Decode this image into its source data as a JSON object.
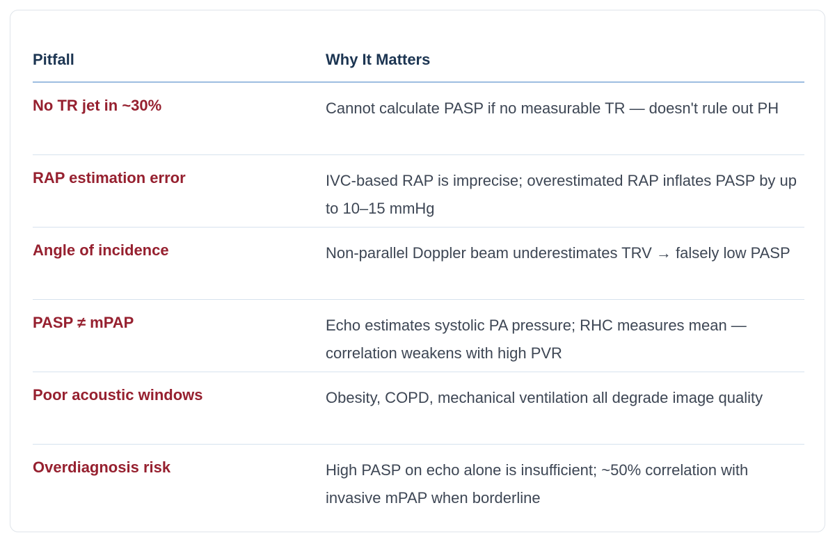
{
  "table": {
    "headers": [
      "Pitfall",
      "Why It Matters"
    ],
    "rows": [
      {
        "pitfall": "No TR jet in ~30%",
        "why": "Cannot calculate PASP if no measurable TR — doesn't rule out PH"
      },
      {
        "pitfall": "RAP estimation error",
        "why": "IVC-based RAP is imprecise; overestimated RAP inflates PASP by up to 10–15 mmHg"
      },
      {
        "pitfall": "Angle of incidence",
        "why": "Non-parallel Doppler beam underestimates TRV → falsely low PASP"
      },
      {
        "pitfall": "PASP ≠ mPAP",
        "why": "Echo estimates systolic PA pressure; RHC measures mean — correlation weakens with high PVR"
      },
      {
        "pitfall": "Poor acoustic windows",
        "why": "Obesity, COPD, mechanical ventilation all degrade image quality"
      },
      {
        "pitfall": "Overdiagnosis risk",
        "why": "High PASP on echo alone is insufficient; ~50% correlation with invasive mPAP when borderline"
      }
    ]
  },
  "colors": {
    "header_text": "#1c3552",
    "pitfall_text": "#96202f",
    "body_text": "#3d4654",
    "header_rule": "#9dbde0",
    "row_rule": "#d6e2ee"
  }
}
